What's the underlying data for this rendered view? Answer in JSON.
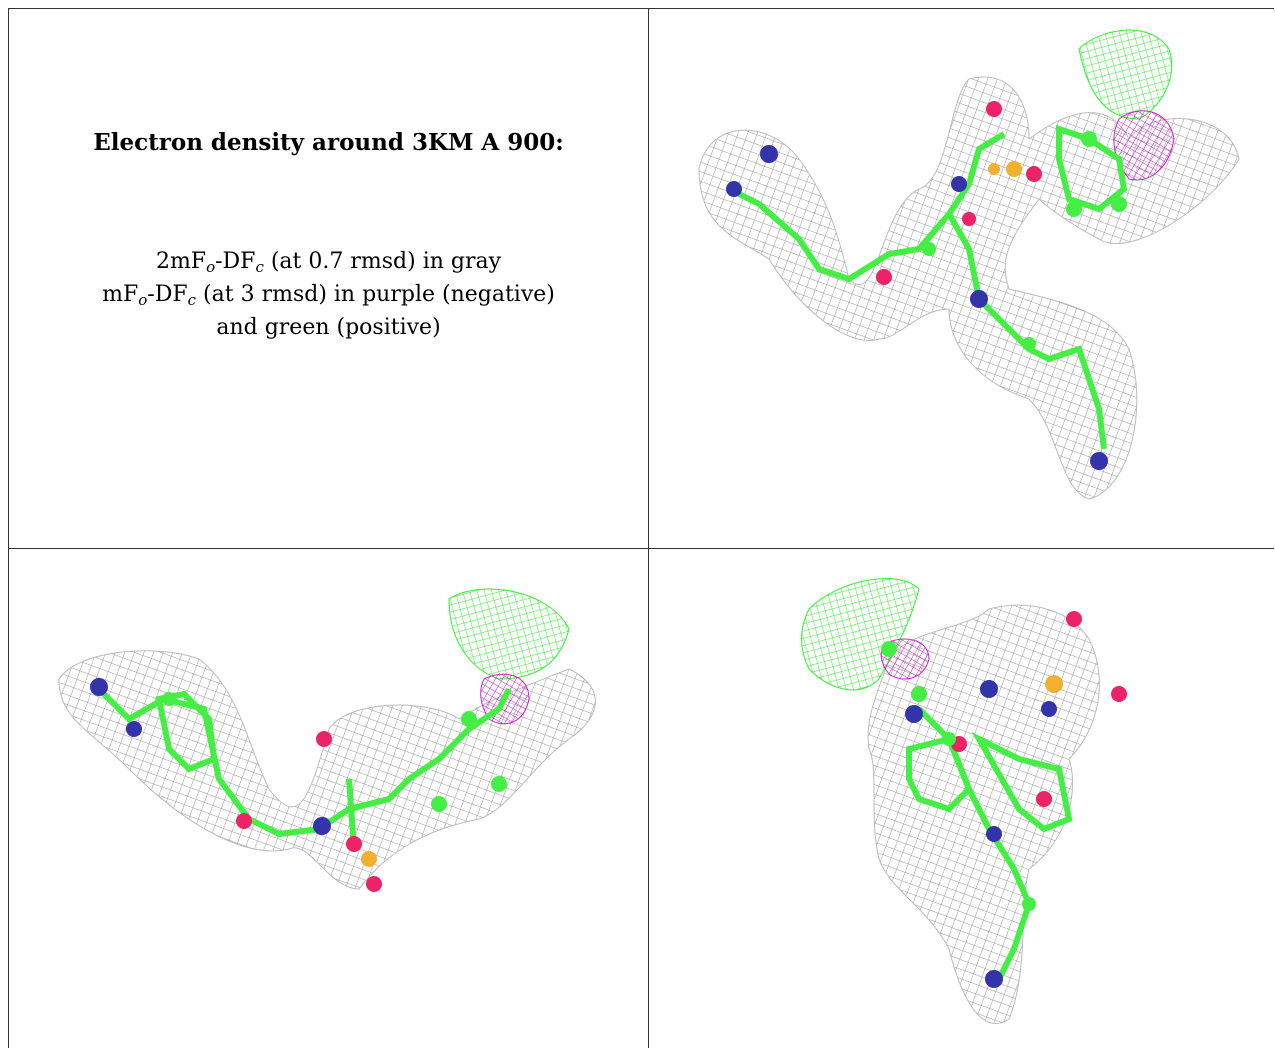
{
  "caption": {
    "title": "Electron density around 3KM A 900:",
    "line1_prefix": "2mF",
    "line1_sub1": "o",
    "line1_mid": "-DF",
    "line1_sub2": "c",
    "line1_suffix": " (at 0.7 rmsd) in gray",
    "line2_prefix": "mF",
    "line2_sub1": "o",
    "line2_mid": "-DF",
    "line2_sub2": "c",
    "line2_suffix": " (at 3 rmsd) in purple (negative)",
    "line3": "and green (positive)"
  },
  "colors": {
    "mesh_2fofc": "#9a9a9a",
    "mesh_positive": "#33ee33",
    "mesh_negative": "#cc22cc",
    "carbon": "#44ee44",
    "nitrogen": "#3333aa",
    "oxygen": "#ee2266",
    "sulfur": "#f0b030"
  },
  "views": [
    "density-view-1",
    "density-view-2",
    "density-view-3"
  ]
}
